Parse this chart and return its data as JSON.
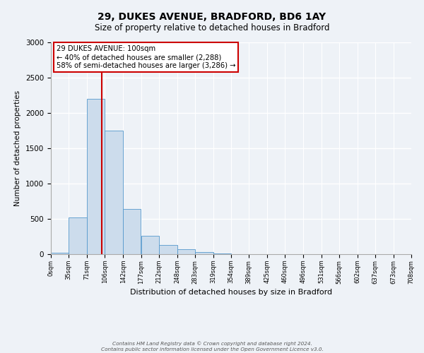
{
  "title": "29, DUKES AVENUE, BRADFORD, BD6 1AY",
  "subtitle": "Size of property relative to detached houses in Bradford",
  "xlabel": "Distribution of detached houses by size in Bradford",
  "ylabel": "Number of detached properties",
  "bar_color": "#ccdcec",
  "bar_edge_color": "#5599cc",
  "bin_edges": [
    0,
    35,
    71,
    106,
    142,
    177,
    212,
    248,
    283,
    319,
    354,
    389,
    425,
    460,
    496,
    531,
    566,
    602,
    637,
    673,
    708
  ],
  "bin_labels": [
    "0sqm",
    "35sqm",
    "71sqm",
    "106sqm",
    "142sqm",
    "177sqm",
    "212sqm",
    "248sqm",
    "283sqm",
    "319sqm",
    "354sqm",
    "389sqm",
    "425sqm",
    "460sqm",
    "496sqm",
    "531sqm",
    "566sqm",
    "602sqm",
    "637sqm",
    "673sqm",
    "708sqm"
  ],
  "bar_heights": [
    20,
    520,
    2200,
    1750,
    640,
    260,
    130,
    70,
    30,
    10,
    5,
    2,
    2,
    0,
    0,
    0,
    0,
    0,
    0,
    0
  ],
  "ylim": [
    0,
    3000
  ],
  "yticks": [
    0,
    500,
    1000,
    1500,
    2000,
    2500,
    3000
  ],
  "property_line_x": 100,
  "property_line_color": "#cc0000",
  "annotation_box_text": "29 DUKES AVENUE: 100sqm\n← 40% of detached houses are smaller (2,288)\n58% of semi-detached houses are larger (3,286) →",
  "annotation_box_color": "#cc0000",
  "annotation_bg_color": "#ffffff",
  "footer_line1": "Contains HM Land Registry data © Crown copyright and database right 2024.",
  "footer_line2": "Contains public sector information licensed under the Open Government Licence v3.0.",
  "bg_color": "#eef2f7",
  "grid_color": "#ffffff"
}
